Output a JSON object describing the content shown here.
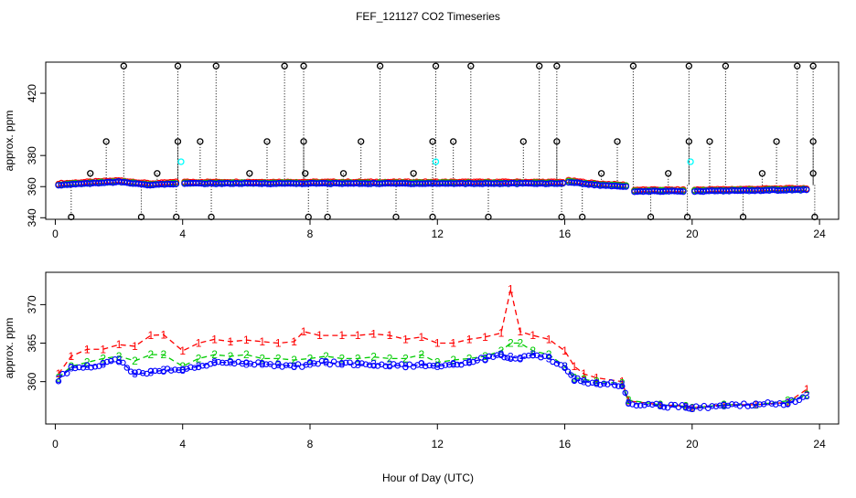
{
  "title": "FEF_121127  CO2 Timeseries",
  "colors": {
    "s1": "#ff0000",
    "s2": "#00cc00",
    "s3": "#0000ff",
    "outlier": "#000000",
    "cyan": "#00ffff",
    "axis": "#000000"
  },
  "chart_data": [
    {
      "type": "scatter",
      "title": "FEF_121127  CO2 Timeseries",
      "xlabel": "",
      "ylabel": "approx. ppm",
      "xlim": [
        -0.3,
        24.6
      ],
      "ylim": [
        339,
        440
      ],
      "xticks": [
        0,
        4,
        8,
        12,
        16,
        20,
        24
      ],
      "yticks": [
        340,
        360,
        380,
        420
      ],
      "baseline_segments": [
        {
          "x": [
            0.1,
            2.0
          ],
          "y": [
            361,
            363
          ]
        },
        {
          "x": [
            2.0,
            3.0
          ],
          "y": [
            363,
            361
          ]
        },
        {
          "x": [
            3.0,
            3.85
          ],
          "y": [
            361,
            362
          ]
        },
        {
          "x": [
            4.0,
            16.0
          ],
          "y": [
            362,
            362
          ]
        },
        {
          "x": [
            16.1,
            17.0
          ],
          "y": [
            363,
            361
          ]
        },
        {
          "x": [
            17.0,
            18.0
          ],
          "y": [
            361,
            360
          ]
        },
        {
          "x": [
            18.1,
            19.8
          ],
          "y": [
            357,
            357
          ]
        },
        {
          "x": [
            20.0,
            23.6
          ],
          "y": [
            357,
            358
          ]
        }
      ],
      "outliers_high": [
        2.15,
        3.85,
        5.05,
        7.2,
        7.8,
        10.2,
        11.95,
        13.05,
        15.2,
        15.75,
        18.15,
        19.9,
        21.05,
        23.3,
        23.8
      ],
      "outliers_mid": [
        1.6,
        3.85,
        4.55,
        6.65,
        7.8,
        9.6,
        11.85,
        12.5,
        14.7,
        15.75,
        17.65,
        19.9,
        20.55,
        22.65,
        23.8
      ],
      "outliers_371": [
        1.1,
        3.2,
        6.1,
        7.85,
        9.05,
        11.25,
        17.15,
        19.25,
        22.2,
        23.8
      ],
      "outliers_340": [
        0.5,
        2.7,
        3.8,
        4.9,
        7.95,
        8.55,
        10.7,
        11.85,
        13.6,
        15.9,
        16.55,
        18.7,
        19.85,
        21.6,
        23.85
      ],
      "cyan_points": [
        {
          "x": 3.95,
          "y": 376
        },
        {
          "x": 11.95,
          "y": 376
        },
        {
          "x": 19.95,
          "y": 376
        }
      ]
    },
    {
      "type": "scatter",
      "xlabel": "Hour of Day (UTC)",
      "ylabel": "approx. ppm",
      "xlim": [
        -0.3,
        24.6
      ],
      "ylim": [
        354.5,
        374.2
      ],
      "xticks": [
        0,
        4,
        8,
        12,
        16,
        20,
        24
      ],
      "yticks": [
        360,
        365,
        370
      ],
      "series": [
        {
          "name": "1",
          "values": [
            [
              0.1,
              361
            ],
            [
              0.5,
              363.3
            ],
            [
              1.0,
              364.2
            ],
            [
              1.5,
              364.2
            ],
            [
              2.0,
              364.8
            ],
            [
              2.5,
              364.6
            ],
            [
              3.0,
              366
            ],
            [
              3.4,
              366.1
            ],
            [
              4.0,
              364
            ],
            [
              4.5,
              365
            ],
            [
              5.0,
              365.5
            ],
            [
              5.5,
              365.2
            ],
            [
              6.0,
              365.4
            ],
            [
              6.5,
              365.2
            ],
            [
              7.0,
              365
            ],
            [
              7.5,
              365.2
            ],
            [
              7.8,
              366.5
            ],
            [
              8.3,
              366
            ],
            [
              9.0,
              366
            ],
            [
              9.5,
              366
            ],
            [
              10.0,
              366.2
            ],
            [
              10.5,
              366
            ],
            [
              11.0,
              365.5
            ],
            [
              11.5,
              365.8
            ],
            [
              12.0,
              365
            ],
            [
              12.5,
              365
            ],
            [
              13.0,
              365.5
            ],
            [
              13.5,
              365.8
            ],
            [
              14.0,
              366.3
            ],
            [
              14.3,
              372
            ],
            [
              14.6,
              366.5
            ],
            [
              15.0,
              366
            ],
            [
              15.5,
              365.5
            ],
            [
              16.0,
              364
            ],
            [
              16.3,
              362
            ],
            [
              16.6,
              361
            ],
            [
              17.0,
              360.5
            ],
            [
              17.8,
              360
            ],
            [
              18.0,
              357.5
            ],
            [
              19.0,
              357
            ],
            [
              19.8,
              356.8
            ],
            [
              20.0,
              356.6
            ],
            [
              21.0,
              357
            ],
            [
              22.0,
              357
            ],
            [
              23.0,
              357.3
            ],
            [
              23.6,
              359
            ]
          ]
        },
        {
          "name": "2",
          "values": [
            [
              0.1,
              360.5
            ],
            [
              0.5,
              362
            ],
            [
              1.0,
              362.5
            ],
            [
              1.5,
              363
            ],
            [
              2.0,
              363.3
            ],
            [
              2.5,
              362.7
            ],
            [
              3.0,
              363.5
            ],
            [
              3.4,
              363.5
            ],
            [
              4.0,
              362
            ],
            [
              4.5,
              363
            ],
            [
              5.0,
              363.5
            ],
            [
              5.5,
              363.3
            ],
            [
              6.0,
              363.5
            ],
            [
              6.5,
              363
            ],
            [
              7.0,
              363
            ],
            [
              7.5,
              362.8
            ],
            [
              8.0,
              363
            ],
            [
              8.5,
              363.3
            ],
            [
              9.0,
              363
            ],
            [
              9.5,
              363
            ],
            [
              10.0,
              363.2
            ],
            [
              10.5,
              363
            ],
            [
              11.0,
              363
            ],
            [
              11.5,
              363.5
            ],
            [
              12.0,
              362.5
            ],
            [
              12.5,
              362.8
            ],
            [
              13.0,
              363
            ],
            [
              13.5,
              363.3
            ],
            [
              14.0,
              364
            ],
            [
              14.3,
              365
            ],
            [
              14.6,
              365
            ],
            [
              15.0,
              364
            ],
            [
              15.5,
              363.5
            ],
            [
              16.0,
              362
            ],
            [
              16.3,
              360.5
            ],
            [
              16.6,
              360.3
            ],
            [
              17.0,
              360
            ],
            [
              17.8,
              359.8
            ],
            [
              18.0,
              357.6
            ],
            [
              19.0,
              357
            ],
            [
              19.8,
              356.8
            ],
            [
              20.0,
              356.6
            ],
            [
              21.0,
              357
            ],
            [
              22.0,
              357
            ],
            [
              23.0,
              357.5
            ],
            [
              23.6,
              358.3
            ]
          ]
        },
        {
          "name": "3",
          "values": [
            [
              0.1,
              360.3
            ],
            [
              0.5,
              361.8
            ],
            [
              1.0,
              362
            ],
            [
              1.5,
              362.3
            ],
            [
              2.0,
              362.8
            ],
            [
              2.5,
              361
            ],
            [
              3.0,
              361.2
            ],
            [
              3.4,
              361.5
            ],
            [
              4.0,
              361.5
            ],
            [
              4.5,
              362
            ],
            [
              5.0,
              362.5
            ],
            [
              5.5,
              362.5
            ],
            [
              6.0,
              362.3
            ],
            [
              6.5,
              362.3
            ],
            [
              7.0,
              362.2
            ],
            [
              7.5,
              362
            ],
            [
              8.0,
              362.3
            ],
            [
              8.5,
              362.5
            ],
            [
              9.0,
              362.3
            ],
            [
              9.5,
              362.2
            ],
            [
              10.0,
              362.3
            ],
            [
              10.5,
              362.2
            ],
            [
              11.0,
              362
            ],
            [
              11.5,
              362.2
            ],
            [
              12.0,
              362
            ],
            [
              12.5,
              362.3
            ],
            [
              13.0,
              362.5
            ],
            [
              13.5,
              363
            ],
            [
              14.0,
              363.5
            ],
            [
              14.3,
              363.2
            ],
            [
              14.6,
              363
            ],
            [
              15.0,
              363.5
            ],
            [
              15.5,
              363
            ],
            [
              16.0,
              362
            ],
            [
              16.3,
              360.3
            ],
            [
              16.6,
              360
            ],
            [
              17.0,
              359.8
            ],
            [
              17.8,
              359.6
            ],
            [
              18.0,
              357.2
            ],
            [
              19.0,
              356.9
            ],
            [
              19.8,
              356.7
            ],
            [
              20.0,
              356.5
            ],
            [
              21.0,
              356.9
            ],
            [
              22.0,
              357
            ],
            [
              23.0,
              357.2
            ],
            [
              23.6,
              358.2
            ]
          ]
        }
      ]
    }
  ]
}
